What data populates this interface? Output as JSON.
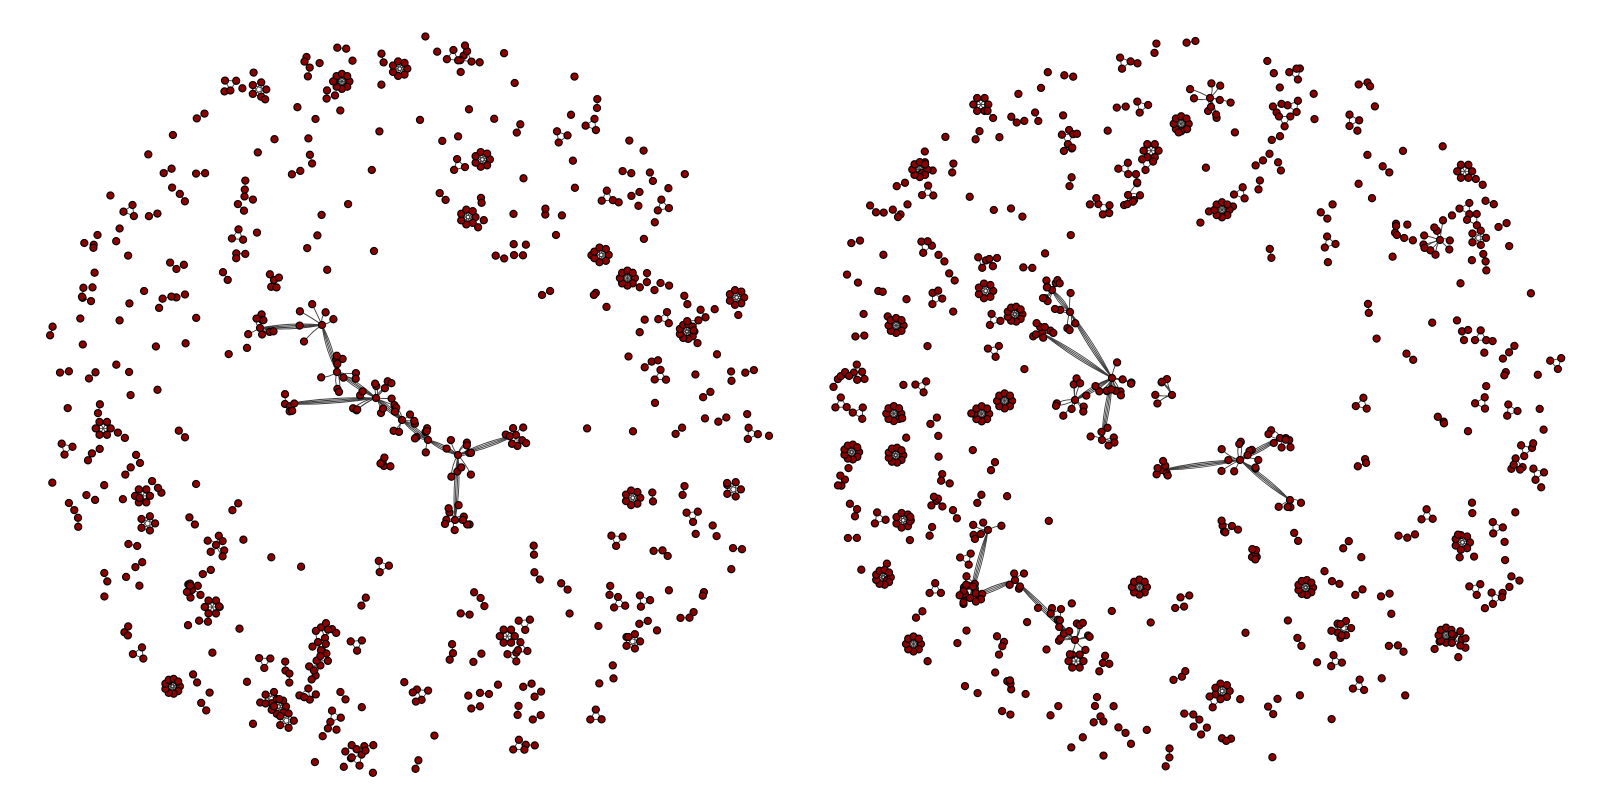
{
  "colors": {
    "background": "#ffffff",
    "node_fill": "#8b0000",
    "node_stroke": "#000000",
    "edge": "#3c3c3c"
  },
  "networks": [
    {
      "id": "network-left"
    },
    {
      "id": "network-right"
    }
  ]
}
